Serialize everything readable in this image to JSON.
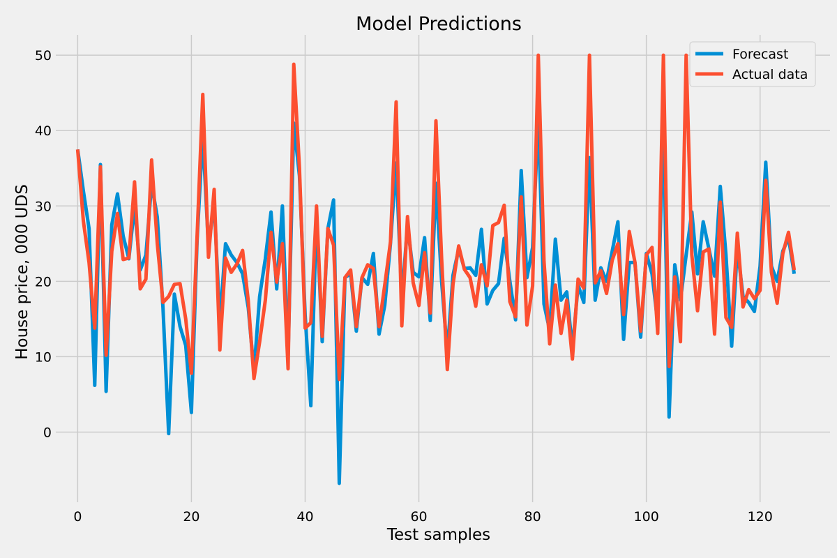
{
  "chart_data": {
    "type": "line",
    "title": "Model Predictions",
    "xlabel": "Test samples",
    "ylabel": "House price, 000 UDS",
    "xlim": [
      -6.3,
      132.3
    ],
    "ylim": [
      -9.3,
      52.7
    ],
    "xticks": [
      0,
      20,
      40,
      60,
      80,
      100,
      120
    ],
    "yticks": [
      0,
      10,
      20,
      30,
      40,
      50
    ],
    "grid": true,
    "legend_position": "top-right",
    "x": [
      0,
      1,
      2,
      3,
      4,
      5,
      6,
      7,
      8,
      9,
      10,
      11,
      12,
      13,
      14,
      15,
      16,
      17,
      18,
      19,
      20,
      21,
      22,
      23,
      24,
      25,
      26,
      27,
      28,
      29,
      30,
      31,
      32,
      33,
      34,
      35,
      36,
      37,
      38,
      39,
      40,
      41,
      42,
      43,
      44,
      45,
      46,
      47,
      48,
      49,
      50,
      51,
      52,
      53,
      54,
      55,
      56,
      57,
      58,
      59,
      60,
      61,
      62,
      63,
      64,
      65,
      66,
      67,
      68,
      69,
      70,
      71,
      72,
      73,
      74,
      75,
      76,
      77,
      78,
      79,
      80,
      81,
      82,
      83,
      84,
      85,
      86,
      87,
      88,
      89,
      90,
      91,
      92,
      93,
      94,
      95,
      96,
      97,
      98,
      99,
      100,
      101,
      102,
      103,
      104,
      105,
      106,
      107,
      108,
      109,
      110,
      111,
      112,
      113,
      114,
      115,
      116,
      117,
      118,
      119,
      120,
      121,
      122,
      123,
      124,
      125,
      126
    ],
    "series": [
      {
        "name": "Forecast",
        "color": "#008fd5",
        "values": [
          37.5,
          32,
          27,
          6.2,
          35.5,
          5.4,
          27.5,
          31.6,
          26,
          23,
          30,
          21.5,
          23.5,
          33,
          28.5,
          16.5,
          -0.2,
          18.3,
          14,
          11.5,
          2.6,
          25.5,
          39.5,
          24.5,
          30.5,
          14.5,
          25,
          23.5,
          22.5,
          21,
          16.5,
          8,
          18,
          23,
          29.2,
          19,
          30,
          10,
          41,
          34,
          15.5,
          3.5,
          29,
          12,
          27,
          30.8,
          -6.8,
          20.5,
          21,
          13.4,
          20.5,
          19.6,
          23.7,
          13,
          16.8,
          25,
          35.7,
          17.5,
          27.5,
          21.2,
          20.6,
          25.8,
          14.8,
          33,
          20,
          10.5,
          20.8,
          24.3,
          21.7,
          21.8,
          20.8,
          26.9,
          17,
          18.8,
          19.7,
          25.7,
          20,
          14.9,
          34.7,
          20.5,
          24.5,
          42,
          17,
          13.5,
          25.6,
          17.5,
          18.6,
          11,
          19.5,
          17.2,
          36.4,
          17.5,
          21.8,
          20,
          24,
          27.9,
          12.3,
          22.5,
          22.5,
          12.6,
          23.7,
          21,
          14.5,
          41.5,
          2,
          22.2,
          17.5,
          23.5,
          29.2,
          21,
          27.9,
          24.3,
          20.7,
          32.6,
          23.5,
          11.4,
          24.5,
          18,
          17.2,
          16,
          22,
          35.8,
          22,
          20,
          24,
          25.8,
          21
        ]
      },
      {
        "name": "Actual data",
        "color": "#fc4f30",
        "values": [
          37.5,
          28,
          22.5,
          13.8,
          35.2,
          10.2,
          24,
          29,
          22.9,
          23.1,
          33.2,
          19,
          20.3,
          36.1,
          25,
          17.2,
          18,
          19.6,
          19.7,
          15,
          7.8,
          26,
          44.8,
          23.2,
          32.2,
          10.9,
          23.1,
          21.2,
          22.3,
          24.1,
          17.4,
          7.1,
          12,
          17.5,
          26.5,
          19.9,
          25,
          8.4,
          48.8,
          35,
          13.8,
          14.5,
          30,
          12.7,
          27,
          24.8,
          7,
          20.5,
          21.5,
          14,
          20.5,
          22.2,
          21.7,
          14,
          19.5,
          25.2,
          43.8,
          14.1,
          28.6,
          19.8,
          16.8,
          23.8,
          15.8,
          41.3,
          23,
          8.3,
          19.6,
          24.7,
          21.6,
          20.5,
          16.7,
          22.2,
          19.4,
          27.4,
          27.8,
          30.1,
          17.3,
          15.3,
          31.2,
          14.2,
          19.4,
          50,
          22.7,
          11.7,
          19.5,
          13.1,
          17.5,
          9.7,
          20.3,
          19.1,
          50,
          19.8,
          21.4,
          18.4,
          22.8,
          25,
          15.6,
          26.6,
          22.5,
          13.4,
          23.5,
          24.5,
          13.1,
          50,
          8.7,
          20.6,
          12,
          50,
          23.5,
          16.1,
          23.9,
          24.3,
          13,
          30.5,
          15.2,
          13.9,
          26.4,
          16.6,
          18.9,
          17.7,
          18.8,
          33.4,
          21.2,
          17.1,
          23.7,
          26.5,
          21.5
        ]
      }
    ]
  }
}
